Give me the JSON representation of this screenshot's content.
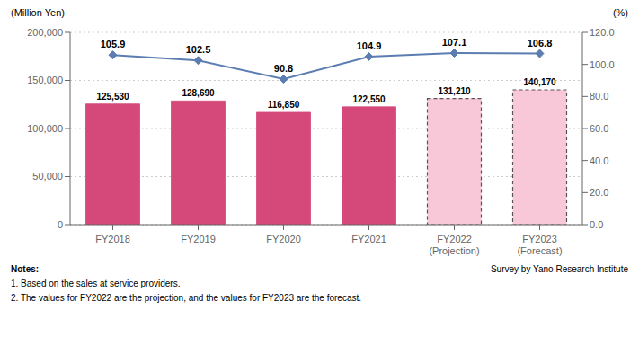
{
  "chart_data": {
    "type": "bar",
    "categories": [
      "FY2018",
      "FY2019",
      "FY2020",
      "FY2021",
      "FY2022\n(Projection)",
      "FY2023\n(Forecast)"
    ],
    "series": [
      {
        "type": "bar",
        "values": [
          125530,
          128690,
          116850,
          122550,
          131210,
          140170
        ],
        "value_labels": [
          "125,530",
          "128,690",
          "116,850",
          "122,550",
          "131,210",
          "140,170"
        ],
        "data_labels": true,
        "colors": [
          "#d4487a",
          "#d4487a",
          "#d4487a",
          "#d4487a",
          "#f9c8d8",
          "#f9c8d8"
        ]
      },
      {
        "type": "line",
        "axis": "y2",
        "values": [
          105.9,
          102.5,
          90.8,
          104.9,
          107.1,
          106.8
        ],
        "data_labels": true,
        "color": "#5b7db1",
        "marker": "diamond"
      }
    ],
    "ylabel": "(Million Yen)",
    "y2label": "(%)",
    "ylim": [
      0,
      200000
    ],
    "yticks": [
      0,
      {
        "value": 50000,
        "label": "50,000"
      },
      {
        "value": 100000,
        "label": "100,000"
      },
      {
        "value": 150000,
        "label": "150,000"
      },
      {
        "value": 200000,
        "label": "200,000"
      }
    ],
    "y2lim": [
      0,
      120
    ],
    "y2ticks": [
      {
        "value": 0,
        "label": "0.0"
      },
      {
        "value": 20,
        "label": "20.0"
      },
      {
        "value": 40,
        "label": "40.0"
      },
      {
        "value": 60,
        "label": "60.0"
      },
      {
        "value": 80,
        "label": "80.0"
      },
      {
        "value": 100,
        "label": "100.0"
      },
      {
        "value": 120,
        "label": "120.0"
      }
    ],
    "grid": true,
    "note_title": "Notes:",
    "notes": [
      "1. Based on the sales at service providers.",
      "2. The values for FY2022 are the projection, and the values for FY2023 are the forecast."
    ],
    "source": "Survey by Yano Research Institute"
  }
}
